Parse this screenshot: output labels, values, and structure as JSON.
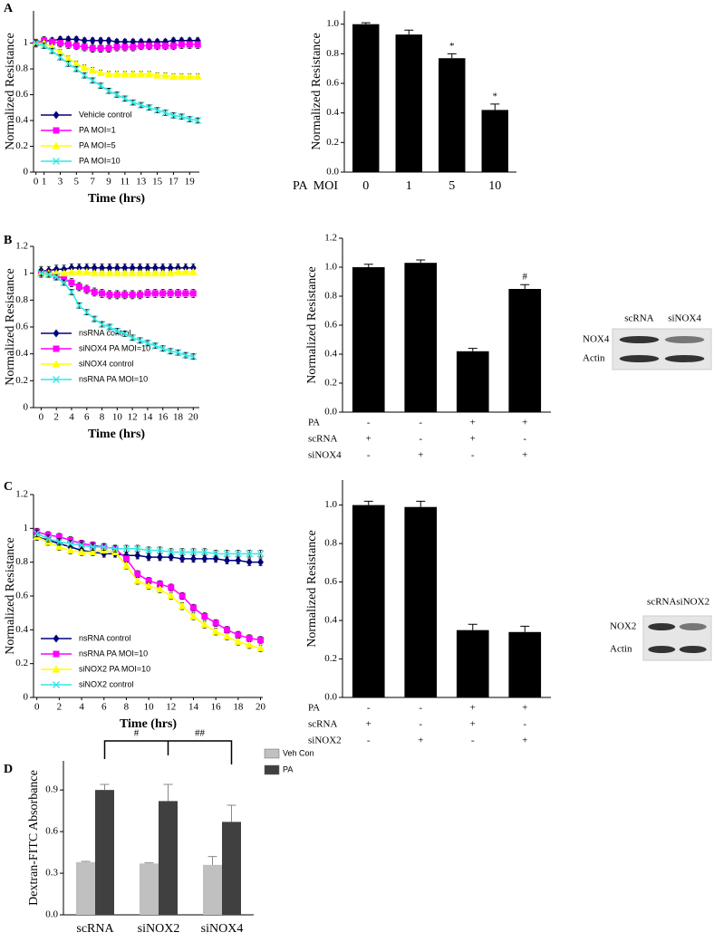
{
  "chart_data": [
    {
      "type": "line",
      "panel": "A",
      "xlabel": "Time (hrs)",
      "ylabel": "Normalized Resistance",
      "x": [
        0,
        1,
        2,
        3,
        4,
        5,
        6,
        7,
        8,
        9,
        10,
        11,
        12,
        13,
        14,
        15,
        16,
        17,
        18,
        19,
        20
      ],
      "xlim": [
        -0.3,
        20.2
      ],
      "xticks": [
        0,
        1,
        3,
        5,
        7,
        9,
        11,
        13,
        15,
        17,
        19
      ],
      "ylim": [
        0,
        1.25
      ],
      "yticks": [
        0,
        0.2,
        0.4,
        0.6,
        0.8,
        1
      ],
      "series": [
        {
          "name": "Vehicle control",
          "color": "#00007f",
          "marker": "diamond",
          "values": [
            1,
            1.02,
            1.02,
            1.03,
            1.03,
            1.03,
            1.02,
            1.02,
            1.02,
            1.02,
            1.01,
            1.01,
            1.01,
            1.01,
            1.01,
            1.01,
            1.01,
            1.02,
            1.02,
            1.02,
            1.02
          ],
          "errors": [
            0.02,
            0.02,
            0.02,
            0.02,
            0.02,
            0.02,
            0.02,
            0.02,
            0.02,
            0.02,
            0.02,
            0.02,
            0.02,
            0.02,
            0.02,
            0.02,
            0.02,
            0.02,
            0.02,
            0.02,
            0.02
          ]
        },
        {
          "name": "PA MOI=1",
          "color": "#ff00ff",
          "marker": "square",
          "values": [
            1,
            1.02,
            1.01,
            1.0,
            0.99,
            0.98,
            0.97,
            0.96,
            0.96,
            0.96,
            0.97,
            0.97,
            0.97,
            0.98,
            0.98,
            0.98,
            0.98,
            0.98,
            0.99,
            0.99,
            0.99
          ],
          "errors": [
            0.03,
            0.03,
            0.03,
            0.03,
            0.03,
            0.03,
            0.03,
            0.03,
            0.03,
            0.03,
            0.03,
            0.03,
            0.03,
            0.03,
            0.03,
            0.03,
            0.03,
            0.03,
            0.03,
            0.03,
            0.03
          ]
        },
        {
          "name": "PA MOI=5",
          "color": "#ffff00",
          "marker": "triangle",
          "values": [
            1,
            1.0,
            0.97,
            0.93,
            0.88,
            0.84,
            0.81,
            0.79,
            0.77,
            0.76,
            0.76,
            0.76,
            0.76,
            0.76,
            0.76,
            0.75,
            0.75,
            0.74,
            0.74,
            0.74,
            0.74
          ],
          "errors": [
            0.02,
            0.02,
            0.02,
            0.02,
            0.02,
            0.02,
            0.02,
            0.02,
            0.02,
            0.02,
            0.02,
            0.02,
            0.02,
            0.02,
            0.02,
            0.02,
            0.02,
            0.02,
            0.02,
            0.02,
            0.02
          ]
        },
        {
          "name": "PA MOI=10",
          "color": "#33e6e6",
          "marker": "x",
          "values": [
            1,
            0.98,
            0.94,
            0.89,
            0.84,
            0.8,
            0.75,
            0.71,
            0.67,
            0.63,
            0.6,
            0.57,
            0.54,
            0.52,
            0.5,
            0.48,
            0.46,
            0.44,
            0.43,
            0.41,
            0.4
          ],
          "errors": [
            0.02,
            0.02,
            0.02,
            0.02,
            0.02,
            0.02,
            0.02,
            0.02,
            0.02,
            0.02,
            0.02,
            0.02,
            0.02,
            0.02,
            0.02,
            0.02,
            0.02,
            0.02,
            0.02,
            0.02,
            0.02
          ]
        }
      ]
    },
    {
      "type": "bar",
      "ylabel": "Normalized Resistance",
      "xlabel": "PA  MOI",
      "categories": [
        "0",
        "1",
        "5",
        "10"
      ],
      "values": [
        1.0,
        0.93,
        0.77,
        0.42
      ],
      "errors": [
        0.01,
        0.03,
        0.03,
        0.04
      ],
      "significance": [
        null,
        null,
        "*",
        "*"
      ],
      "color": "#000000",
      "ylim": [
        0,
        1.09
      ],
      "yticks": [
        {
          "value": 0,
          "label": "0.0"
        },
        {
          "value": 0.2,
          "label": "0.2"
        },
        {
          "value": 0.4,
          "label": "0.4"
        },
        {
          "value": 0.6,
          "label": "0.6"
        },
        {
          "value": 0.8,
          "label": "0.8"
        },
        {
          "value": 1,
          "label": "1.0"
        }
      ]
    },
    {
      "type": "line",
      "panel": "B",
      "xlabel": "Time (hrs)",
      "ylabel": "Normalized Resistance",
      "x": [
        0,
        1,
        2,
        3,
        4,
        5,
        6,
        7,
        8,
        9,
        10,
        11,
        12,
        13,
        14,
        15,
        16,
        17,
        18,
        19,
        20
      ],
      "xlim": [
        -1,
        20.8
      ],
      "xticks": [
        0,
        2,
        4,
        6,
        8,
        10,
        12,
        14,
        16,
        18,
        20
      ],
      "ylim": [
        0,
        1.2
      ],
      "yticks": [
        0,
        0.2,
        0.4,
        0.6,
        0.8,
        1,
        1.2
      ],
      "series": [
        {
          "name": "nsRNA control",
          "color": "#00007f",
          "marker": "diamond",
          "values": [
            1.02,
            1.02,
            1.03,
            1.03,
            1.04,
            1.04,
            1.04,
            1.04,
            1.04,
            1.04,
            1.04,
            1.04,
            1.04,
            1.04,
            1.04,
            1.04,
            1.04,
            1.04,
            1.04,
            1.04,
            1.04
          ],
          "errors": [
            0.03,
            0.03,
            0.03,
            0.03,
            0.03,
            0.03,
            0.03,
            0.03,
            0.03,
            0.03,
            0.03,
            0.03,
            0.03,
            0.03,
            0.03,
            0.03,
            0.03,
            0.03,
            0.03,
            0.03,
            0.03
          ]
        },
        {
          "name": "siNOX4 PA MOI=10",
          "color": "#ff00ff",
          "marker": "square",
          "values": [
            1,
            1.0,
            0.98,
            0.96,
            0.93,
            0.9,
            0.88,
            0.86,
            0.85,
            0.84,
            0.84,
            0.84,
            0.84,
            0.84,
            0.85,
            0.85,
            0.85,
            0.85,
            0.85,
            0.85,
            0.85
          ],
          "errors": [
            0.03,
            0.03,
            0.03,
            0.03,
            0.03,
            0.03,
            0.03,
            0.03,
            0.03,
            0.03,
            0.03,
            0.03,
            0.03,
            0.03,
            0.03,
            0.03,
            0.03,
            0.03,
            0.03,
            0.03,
            0.03
          ]
        },
        {
          "name": "siNOX4 control",
          "color": "#ffff00",
          "marker": "triangle",
          "values": [
            1,
            1.0,
            1.0,
            1.0,
            1.01,
            1.01,
            1.01,
            1.0,
            1.0,
            1.0,
            1.0,
            1.0,
            1.0,
            1.0,
            1.0,
            1.0,
            1.0,
            1.0,
            1.01,
            1.01,
            1.01
          ],
          "errors": [
            0.02,
            0.02,
            0.02,
            0.02,
            0.02,
            0.02,
            0.02,
            0.02,
            0.02,
            0.02,
            0.02,
            0.02,
            0.02,
            0.02,
            0.02,
            0.02,
            0.02,
            0.02,
            0.02,
            0.02,
            0.02
          ]
        },
        {
          "name": "nsRNA PA MOI=10",
          "color": "#33e6e6",
          "marker": "x",
          "values": [
            1,
            0.99,
            0.97,
            0.93,
            0.86,
            0.76,
            0.71,
            0.66,
            0.62,
            0.6,
            0.57,
            0.55,
            0.52,
            0.5,
            0.48,
            0.46,
            0.44,
            0.42,
            0.41,
            0.39,
            0.38
          ],
          "errors": [
            0.02,
            0.02,
            0.02,
            0.02,
            0.02,
            0.02,
            0.02,
            0.02,
            0.02,
            0.02,
            0.02,
            0.02,
            0.02,
            0.02,
            0.02,
            0.02,
            0.02,
            0.02,
            0.02,
            0.02,
            0.02
          ]
        }
      ]
    },
    {
      "type": "bar",
      "ylabel": "Normalized Resistance",
      "categories": [
        null,
        null,
        null,
        null
      ],
      "values": [
        1.0,
        1.03,
        0.42,
        0.85
      ],
      "errors": [
        0.02,
        0.02,
        0.02,
        0.03
      ],
      "significance": [
        null,
        null,
        null,
        "#"
      ],
      "color": "#000000",
      "ylim": [
        0,
        1.2
      ],
      "yticks": [
        {
          "value": 0,
          "label": "0.0"
        },
        {
          "value": 0.2,
          "label": "0.2"
        },
        {
          "value": 0.4,
          "label": "0.4"
        },
        {
          "value": 0.6,
          "label": "0.6"
        },
        {
          "value": 0.8,
          "label": "0.8"
        },
        {
          "value": 1,
          "label": "1.0"
        },
        {
          "value": 1.2,
          "label": "1.2"
        }
      ],
      "conditions": [
        {
          "name": "PA",
          "signs": [
            "-",
            "-",
            "+",
            "+"
          ]
        },
        {
          "name": "scRNA",
          "signs": [
            "+",
            "-",
            "+",
            "-"
          ]
        },
        {
          "name": "siNOX4",
          "signs": [
            "-",
            "+",
            "-",
            "+"
          ]
        }
      ],
      "blot": {
        "columns": [
          "scRNA",
          "siNOX4"
        ],
        "rows": [
          "NOX4",
          "Actin"
        ]
      }
    },
    {
      "type": "line",
      "panel": "C",
      "xlabel": "Time (hrs)",
      "ylabel": "Normalized Resistance",
      "x": [
        0,
        1,
        2,
        3,
        4,
        5,
        6,
        7,
        8,
        9,
        10,
        11,
        12,
        13,
        14,
        15,
        16,
        17,
        18,
        19,
        20
      ],
      "xlim": [
        -0.3,
        20.2
      ],
      "xticks": [
        0,
        2,
        4,
        6,
        8,
        10,
        12,
        14,
        16,
        18,
        20
      ],
      "ylim": [
        0,
        1.2
      ],
      "yticks": [
        0,
        0.2,
        0.4,
        0.6,
        0.8,
        1,
        1.2
      ],
      "series": [
        {
          "name": "nsRNA control",
          "color": "#00007f",
          "marker": "diamond",
          "values": [
            0.95,
            0.93,
            0.91,
            0.89,
            0.87,
            0.86,
            0.85,
            0.85,
            0.84,
            0.84,
            0.83,
            0.83,
            0.83,
            0.82,
            0.82,
            0.82,
            0.82,
            0.81,
            0.81,
            0.8,
            0.8
          ],
          "errors": [
            0.02,
            0.02,
            0.02,
            0.02,
            0.02,
            0.02,
            0.02,
            0.02,
            0.02,
            0.02,
            0.02,
            0.02,
            0.02,
            0.02,
            0.02,
            0.02,
            0.02,
            0.02,
            0.02,
            0.02,
            0.02
          ]
        },
        {
          "name": "nsRNA PA MOI=10",
          "color": "#ff00ff",
          "marker": "square",
          "values": [
            0.98,
            0.96,
            0.95,
            0.93,
            0.91,
            0.9,
            0.89,
            0.88,
            0.82,
            0.73,
            0.69,
            0.67,
            0.65,
            0.6,
            0.53,
            0.48,
            0.44,
            0.4,
            0.37,
            0.35,
            0.34
          ],
          "errors": [
            0.02,
            0.02,
            0.02,
            0.02,
            0.02,
            0.02,
            0.02,
            0.02,
            0.02,
            0.02,
            0.02,
            0.02,
            0.02,
            0.02,
            0.02,
            0.02,
            0.02,
            0.02,
            0.02,
            0.02,
            0.02
          ]
        },
        {
          "name": "siNOX2 PA MOI=10",
          "color": "#ffff00",
          "marker": "triangle",
          "values": [
            0.95,
            0.92,
            0.89,
            0.87,
            0.86,
            0.86,
            0.87,
            0.86,
            0.78,
            0.69,
            0.66,
            0.64,
            0.6,
            0.54,
            0.48,
            0.43,
            0.39,
            0.36,
            0.33,
            0.31,
            0.29
          ],
          "errors": [
            0.02,
            0.02,
            0.02,
            0.02,
            0.02,
            0.02,
            0.02,
            0.02,
            0.02,
            0.02,
            0.02,
            0.02,
            0.02,
            0.02,
            0.02,
            0.02,
            0.02,
            0.02,
            0.02,
            0.02,
            0.02
          ]
        },
        {
          "name": "siNOX2 control",
          "color": "#33e6e6",
          "marker": "x",
          "values": [
            0.97,
            0.94,
            0.92,
            0.91,
            0.9,
            0.89,
            0.89,
            0.88,
            0.88,
            0.88,
            0.87,
            0.87,
            0.86,
            0.86,
            0.86,
            0.86,
            0.85,
            0.85,
            0.85,
            0.85,
            0.85
          ],
          "errors": [
            0.02,
            0.02,
            0.02,
            0.02,
            0.02,
            0.02,
            0.02,
            0.02,
            0.02,
            0.02,
            0.02,
            0.02,
            0.02,
            0.02,
            0.02,
            0.02,
            0.02,
            0.02,
            0.02,
            0.02,
            0.02
          ]
        }
      ]
    },
    {
      "type": "bar",
      "ylabel": "Normalized Resistance",
      "categories": [
        null,
        null,
        null,
        null
      ],
      "values": [
        1.0,
        0.99,
        0.35,
        0.34
      ],
      "errors": [
        0.02,
        0.03,
        0.03,
        0.03
      ],
      "color": "#000000",
      "ylim": [
        0,
        1.13
      ],
      "yticks": [
        {
          "value": 0,
          "label": "0.0"
        },
        {
          "value": 0.2,
          "label": "0.2"
        },
        {
          "value": 0.4,
          "label": "0.4"
        },
        {
          "value": 0.6,
          "label": "0.6"
        },
        {
          "value": 0.8,
          "label": "0.8"
        },
        {
          "value": 1,
          "label": "1.0"
        }
      ],
      "conditions": [
        {
          "name": "PA",
          "signs": [
            "-",
            "-",
            "+",
            "+"
          ]
        },
        {
          "name": "scRNA",
          "signs": [
            "+",
            "-",
            "+",
            "-"
          ]
        },
        {
          "name": "siNOX2",
          "signs": [
            "-",
            "+",
            "-",
            "+"
          ]
        }
      ],
      "blot": {
        "columns": [
          "scRNA",
          "siNOX2"
        ],
        "rows": [
          "NOX2",
          "Actin"
        ]
      }
    },
    {
      "type": "bar",
      "panel": "D",
      "ylabel": "Dextran-FITC Absorbance",
      "categories": [
        "scRNA",
        "siNOX2",
        "siNOX4"
      ],
      "series": [
        {
          "name": "Veh Con",
          "color": "#c0c0c0",
          "values": [
            0.38,
            0.37,
            0.36
          ],
          "errors": [
            0.005,
            0.005,
            0.06
          ]
        },
        {
          "name": "PA",
          "color": "#404040",
          "values": [
            0.9,
            0.82,
            0.67
          ],
          "errors": [
            0.04,
            0.12,
            0.12
          ]
        }
      ],
      "brackets": [
        "#",
        "##"
      ],
      "ylim": [
        0,
        1.11
      ],
      "yticks": [
        {
          "value": 0,
          "label": "0.0"
        },
        {
          "value": 0.3,
          "label": "0.3"
        },
        {
          "value": 0.6,
          "label": "0.6"
        },
        {
          "value": 0.9,
          "label": "0.9"
        }
      ]
    }
  ]
}
